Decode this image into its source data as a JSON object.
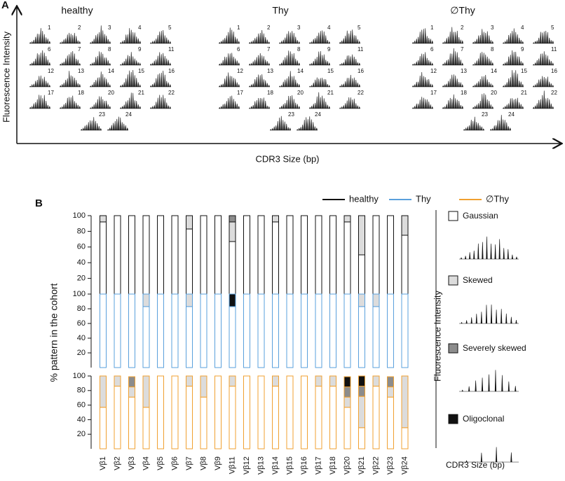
{
  "panel_a": {
    "label": "A",
    "groups": [
      "healthy",
      "Thy",
      "∅Thy"
    ],
    "spectratype_labels": [
      "1",
      "2",
      "3",
      "4",
      "5",
      "6",
      "7",
      "8",
      "9",
      "11",
      "12",
      "13",
      "14",
      "15",
      "16",
      "17",
      "18",
      "20",
      "21",
      "22",
      "23",
      "24"
    ],
    "y_label": "Fluorescence Intensity",
    "x_label": "CDR3 Size (bp)"
  },
  "chart_data": {
    "type": "stacked_bar",
    "panel_label": "B",
    "y_label": "% pattern in the cohort",
    "categories": [
      "Vβ1",
      "Vβ2",
      "Vβ3",
      "Vβ4",
      "Vβ5",
      "Vβ6",
      "Vβ7",
      "Vβ8",
      "Vβ9",
      "Vβ11",
      "Vβ12",
      "Vβ13",
      "Vβ14",
      "Vβ15",
      "Vβ16",
      "Vβ17",
      "Vβ18",
      "Vβ20",
      "Vβ21",
      "Vβ22",
      "Vβ23",
      "Vβ24"
    ],
    "ylim": [
      0,
      100
    ],
    "yticks": [
      20,
      40,
      60,
      80,
      100
    ],
    "pattern_colors": [
      "#ffffff",
      "#dcdcdc",
      "#8c8c8c",
      "#111111"
    ],
    "cohorts": [
      {
        "name": "healthy",
        "color": "#111111",
        "series": [
          {
            "name": "Gaussian",
            "values": [
              92,
              100,
              100,
              100,
              100,
              100,
              83,
              100,
              100,
              67,
              100,
              100,
              92,
              100,
              100,
              100,
              100,
              92,
              50,
              100,
              100,
              75
            ]
          },
          {
            "name": "Skewed",
            "values": [
              8,
              0,
              0,
              0,
              0,
              0,
              17,
              0,
              0,
              25,
              0,
              0,
              8,
              0,
              0,
              0,
              0,
              8,
              50,
              0,
              0,
              25
            ]
          },
          {
            "name": "Severely skewed",
            "values": [
              0,
              0,
              0,
              0,
              0,
              0,
              0,
              0,
              0,
              8,
              0,
              0,
              0,
              0,
              0,
              0,
              0,
              0,
              0,
              0,
              0,
              0
            ]
          },
          {
            "name": "Oligoclonal",
            "values": [
              0,
              0,
              0,
              0,
              0,
              0,
              0,
              0,
              0,
              0,
              0,
              0,
              0,
              0,
              0,
              0,
              0,
              0,
              0,
              0,
              0,
              0
            ]
          }
        ]
      },
      {
        "name": "Thy",
        "color": "#5aa0dc",
        "series": [
          {
            "name": "Gaussian",
            "values": [
              100,
              100,
              100,
              83,
              100,
              100,
              83,
              100,
              100,
              83,
              100,
              100,
              100,
              100,
              100,
              100,
              100,
              100,
              83,
              83,
              100,
              100
            ]
          },
          {
            "name": "Skewed",
            "values": [
              0,
              0,
              0,
              17,
              0,
              0,
              17,
              0,
              0,
              0,
              0,
              0,
              0,
              0,
              0,
              0,
              0,
              0,
              17,
              17,
              0,
              0
            ]
          },
          {
            "name": "Severely skewed",
            "values": [
              0,
              0,
              0,
              0,
              0,
              0,
              0,
              0,
              0,
              0,
              0,
              0,
              0,
              0,
              0,
              0,
              0,
              0,
              0,
              0,
              0,
              0
            ]
          },
          {
            "name": "Oligoclonal",
            "values": [
              0,
              0,
              0,
              0,
              0,
              0,
              0,
              0,
              0,
              17,
              0,
              0,
              0,
              0,
              0,
              0,
              0,
              0,
              0,
              0,
              0,
              0
            ]
          }
        ]
      },
      {
        "name": "∅Thy",
        "color": "#f0a030",
        "series": [
          {
            "name": "Gaussian",
            "values": [
              57,
              86,
              71,
              57,
              100,
              100,
              86,
              71,
              100,
              86,
              100,
              100,
              86,
              100,
              100,
              86,
              86,
              57,
              29,
              86,
              71,
              29
            ]
          },
          {
            "name": "Skewed",
            "values": [
              43,
              14,
              14,
              43,
              0,
              0,
              14,
              29,
              0,
              14,
              0,
              0,
              14,
              0,
              0,
              14,
              14,
              14,
              43,
              14,
              14,
              71
            ]
          },
          {
            "name": "Severely skewed",
            "values": [
              0,
              0,
              14,
              0,
              0,
              0,
              0,
              0,
              0,
              0,
              0,
              0,
              0,
              0,
              0,
              0,
              0,
              14,
              14,
              0,
              14,
              0
            ]
          },
          {
            "name": "Oligoclonal",
            "values": [
              0,
              0,
              0,
              0,
              0,
              0,
              0,
              0,
              0,
              0,
              0,
              0,
              0,
              0,
              0,
              0,
              0,
              14,
              14,
              0,
              0,
              0
            ]
          }
        ]
      }
    ],
    "legend_patterns": [
      "Gaussian",
      "Skewed",
      "Severely skewed",
      "Oligoclonal"
    ],
    "legend_y_label": "Fluorescence Intensity",
    "legend_x_label": "CDR3 Size (bp)"
  }
}
